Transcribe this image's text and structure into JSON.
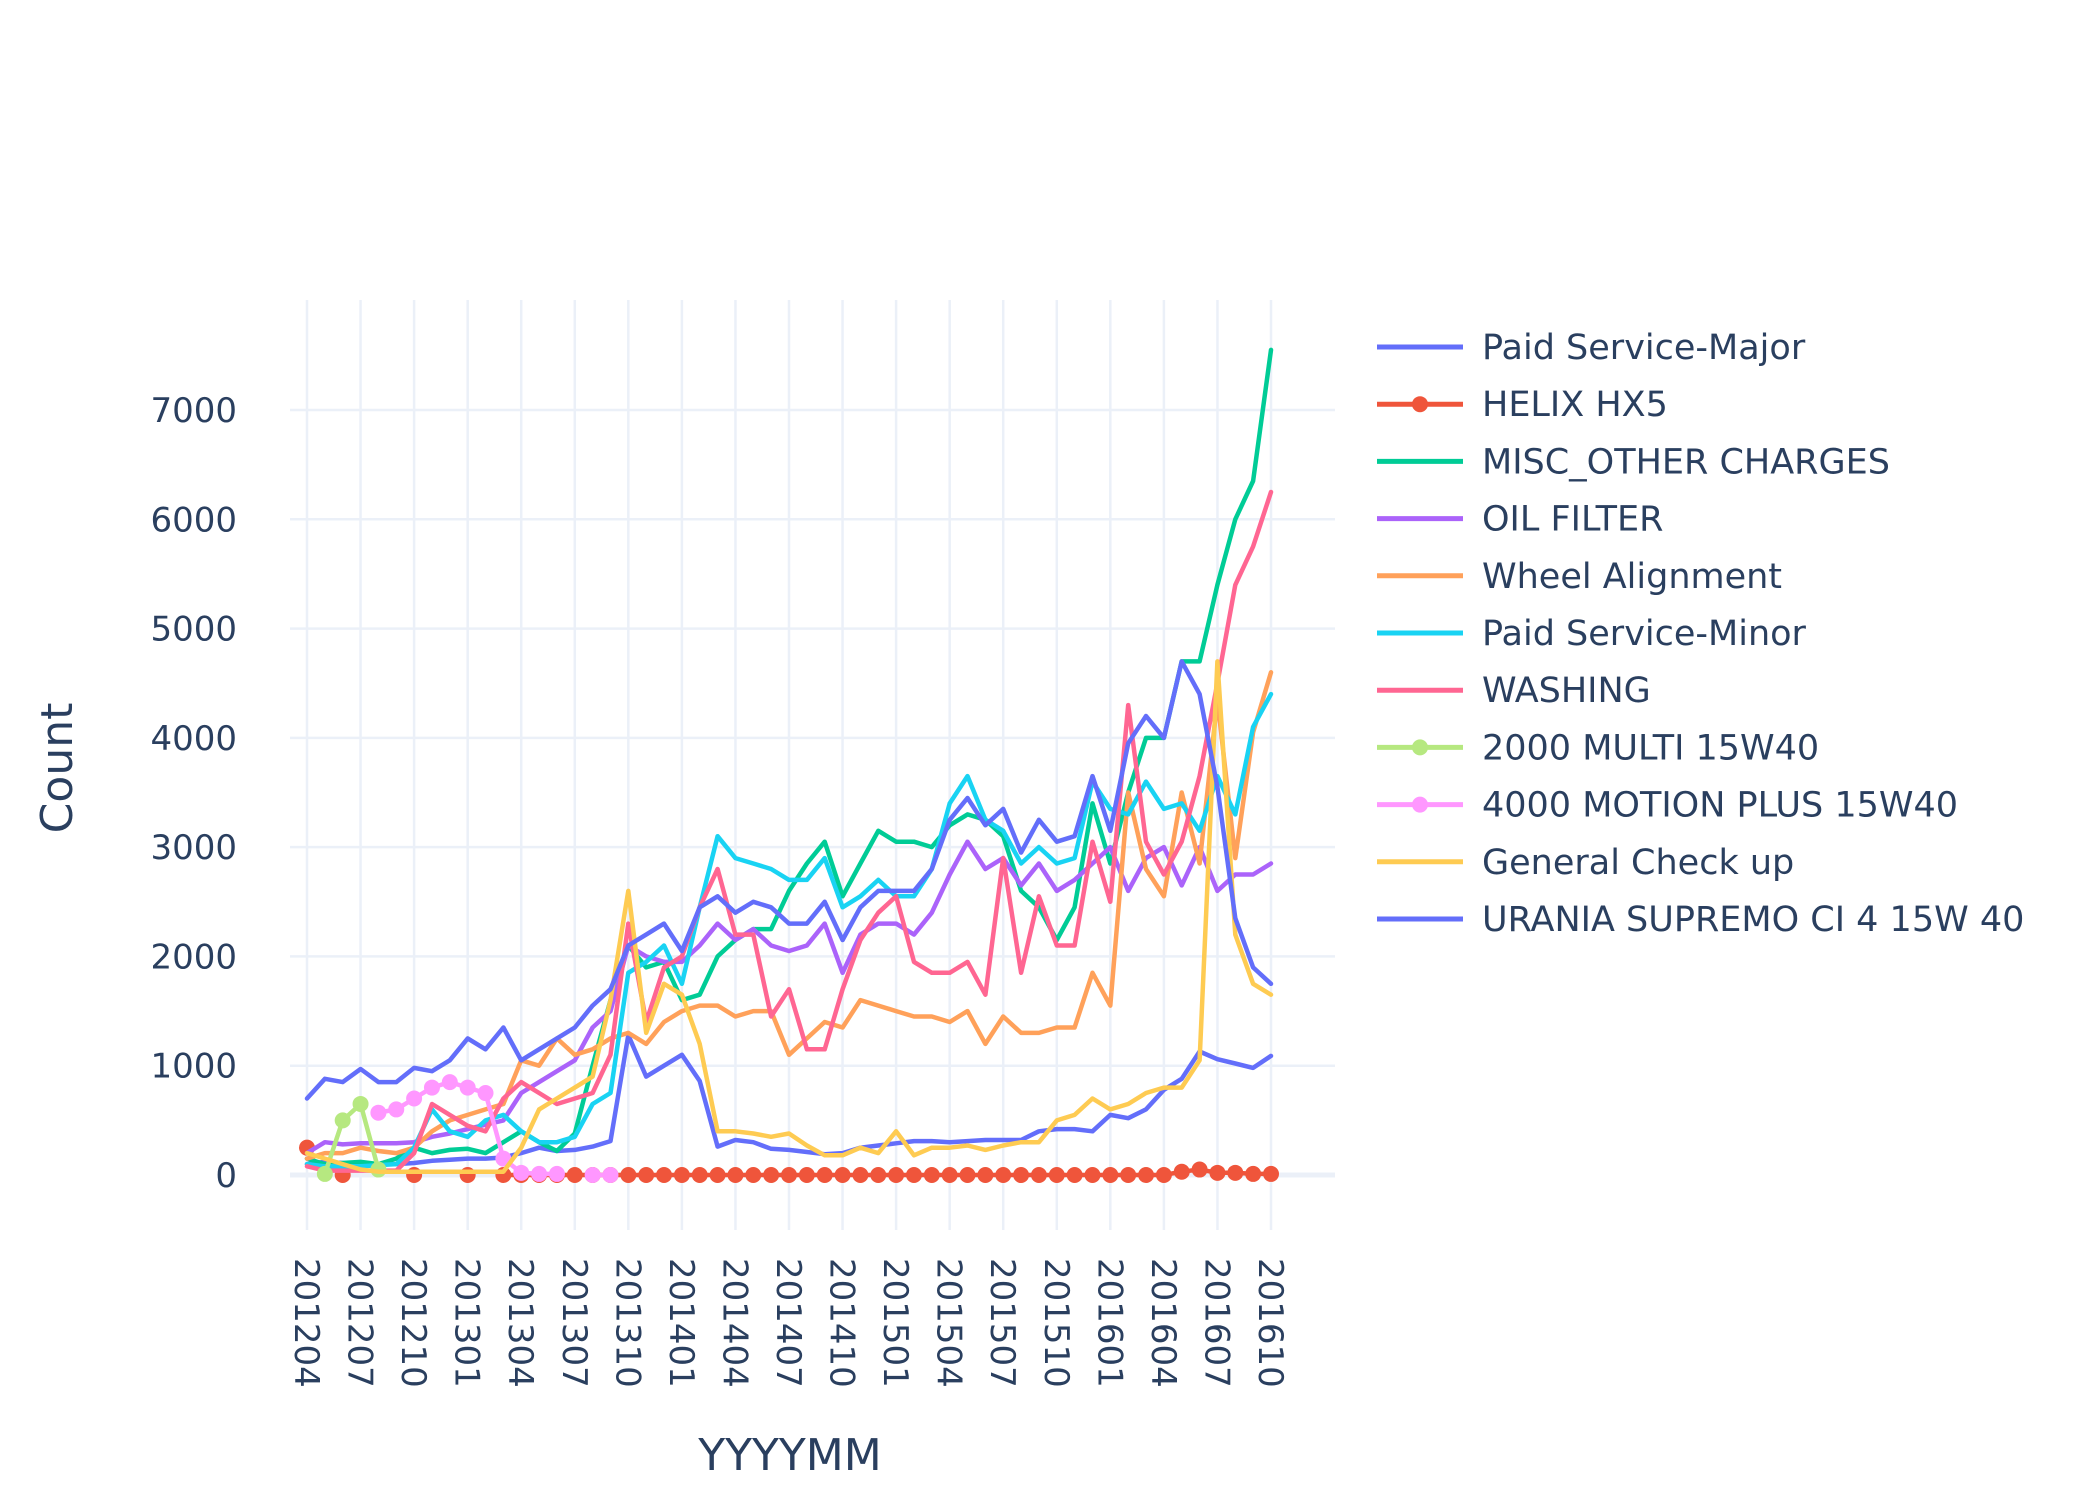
{
  "chart_data": {
    "type": "line",
    "title": "",
    "xlabel": "YYYYMM",
    "ylabel": "Count",
    "ylim": [
      -550,
      8150
    ],
    "yticks": [
      0,
      1000,
      2000,
      3000,
      4000,
      5000,
      6000,
      7000
    ],
    "grid": true,
    "legend_position": "right",
    "x": [
      "201204",
      "201205",
      "201206",
      "201207",
      "201208",
      "201209",
      "201210",
      "201211",
      "201212",
      "201301",
      "201302",
      "201303",
      "201304",
      "201305",
      "201306",
      "201307",
      "201308",
      "201309",
      "201310",
      "201311",
      "201312",
      "201401",
      "201402",
      "201403",
      "201404",
      "201405",
      "201406",
      "201407",
      "201408",
      "201409",
      "201410",
      "201411",
      "201412",
      "201501",
      "201502",
      "201503",
      "201504",
      "201505",
      "201506",
      "201507",
      "201508",
      "201509",
      "201510",
      "201511",
      "201512",
      "201601",
      "201602",
      "201603",
      "201604",
      "201605",
      "201606",
      "201607",
      "201608",
      "201609",
      "201610"
    ],
    "xticks": [
      "201204",
      "201207",
      "201210",
      "201301",
      "201304",
      "201307",
      "201310",
      "201401",
      "201404",
      "201407",
      "201410",
      "201501",
      "201504",
      "201507",
      "201510",
      "201601",
      "201604",
      "201607",
      "201610"
    ],
    "series": [
      {
        "name": "Paid Service-Major",
        "color": "#636efa",
        "mode": "lines",
        "values": [
          100,
          120,
          110,
          100,
          100,
          100,
          110,
          130,
          140,
          150,
          150,
          160,
          200,
          250,
          220,
          230,
          260,
          310,
          1280,
          900,
          1000,
          1100,
          860,
          260,
          320,
          300,
          240,
          230,
          210,
          190,
          200,
          250,
          270,
          290,
          310,
          310,
          300,
          310,
          320,
          320,
          320,
          400,
          420,
          420,
          400,
          550,
          520,
          600,
          780,
          880,
          1130,
          1060,
          1020,
          980,
          1090
        ]
      },
      {
        "name": "HELIX HX5",
        "color": "#ef553b",
        "mode": "lines+markers",
        "values": [
          250,
          null,
          0,
          null,
          null,
          null,
          0,
          null,
          null,
          0,
          null,
          0,
          0,
          0,
          0,
          0,
          0,
          0,
          0,
          0,
          0,
          0,
          0,
          0,
          0,
          0,
          0,
          0,
          0,
          0,
          0,
          0,
          0,
          0,
          0,
          0,
          0,
          0,
          0,
          0,
          0,
          0,
          0,
          0,
          0,
          0,
          0,
          0,
          0,
          30,
          50,
          20,
          20,
          10,
          10
        ]
      },
      {
        "name": "MISC_OTHER CHARGES",
        "color": "#00cc96",
        "mode": "lines",
        "values": [
          150,
          100,
          110,
          120,
          100,
          150,
          250,
          200,
          230,
          240,
          200,
          300,
          400,
          300,
          220,
          380,
          1000,
          1600,
          2100,
          1900,
          1950,
          1600,
          1650,
          2000,
          2150,
          2250,
          2250,
          2600,
          2850,
          3050,
          2550,
          2850,
          3150,
          3050,
          3050,
          3000,
          3200,
          3300,
          3250,
          3100,
          2600,
          2450,
          2150,
          2450,
          3400,
          2850,
          3500,
          4000,
          4000,
          4700,
          4700,
          5400,
          6000,
          6350,
          7550
        ]
      },
      {
        "name": "OIL FILTER",
        "color": "#ab63fa",
        "mode": "lines",
        "values": [
          200,
          300,
          280,
          290,
          290,
          290,
          300,
          350,
          380,
          420,
          460,
          500,
          750,
          850,
          950,
          1050,
          1350,
          1500,
          2100,
          2000,
          1950,
          1950,
          2100,
          2300,
          2150,
          2250,
          2100,
          2050,
          2100,
          2300,
          1850,
          2200,
          2300,
          2300,
          2200,
          2400,
          2750,
          3050,
          2800,
          2900,
          2650,
          2850,
          2600,
          2700,
          2850,
          3000,
          2600,
          2900,
          3000,
          2650,
          3000,
          2600,
          2750,
          2750,
          2850
        ]
      },
      {
        "name": "Wheel Alignment",
        "color": "#ffa15a",
        "mode": "lines",
        "values": [
          150,
          200,
          200,
          250,
          220,
          200,
          250,
          400,
          500,
          550,
          600,
          650,
          1050,
          1000,
          1250,
          1100,
          1150,
          1250,
          1300,
          1200,
          1400,
          1500,
          1550,
          1550,
          1450,
          1500,
          1500,
          1100,
          1250,
          1400,
          1350,
          1600,
          1550,
          1500,
          1450,
          1450,
          1400,
          1500,
          1200,
          1450,
          1300,
          1300,
          1350,
          1350,
          1850,
          1550,
          3500,
          2800,
          2550,
          3500,
          2850,
          4350,
          2900,
          4050,
          4600
        ]
      },
      {
        "name": "Paid Service-Minor",
        "color": "#19d3f3",
        "mode": "lines",
        "values": [
          100,
          80,
          80,
          80,
          90,
          100,
          250,
          600,
          400,
          350,
          500,
          550,
          400,
          300,
          300,
          350,
          650,
          750,
          1850,
          1950,
          2100,
          1750,
          2450,
          3100,
          2900,
          2850,
          2800,
          2700,
          2700,
          2900,
          2450,
          2550,
          2700,
          2550,
          2550,
          2800,
          3400,
          3650,
          3250,
          3150,
          2850,
          3000,
          2850,
          2900,
          3600,
          3350,
          3300,
          3600,
          3350,
          3400,
          3150,
          3650,
          3300,
          4100,
          4400
        ]
      },
      {
        "name": "WASHING",
        "color": "#ff6692",
        "mode": "lines",
        "values": [
          80,
          40,
          40,
          40,
          40,
          40,
          200,
          650,
          550,
          450,
          400,
          700,
          850,
          750,
          650,
          700,
          750,
          1100,
          2300,
          1400,
          1900,
          2000,
          2450,
          2800,
          2200,
          2200,
          1450,
          1700,
          1150,
          1150,
          1700,
          2150,
          2400,
          2550,
          1950,
          1850,
          1850,
          1950,
          1650,
          2900,
          1850,
          2550,
          2100,
          2100,
          3050,
          2500,
          4300,
          3050,
          2750,
          3050,
          3650,
          4500,
          5400,
          5750,
          6250
        ]
      },
      {
        "name": "2000 MULTI 15W40",
        "color": "#b6e880",
        "mode": "lines+markers",
        "values": [
          null,
          10,
          500,
          650,
          50,
          null,
          null,
          null,
          null,
          null,
          null,
          null,
          null,
          null,
          null,
          null,
          null,
          null,
          null,
          null,
          null,
          null,
          null,
          null,
          null,
          null,
          null,
          null,
          null,
          null,
          null,
          null,
          null,
          null,
          null,
          null,
          null,
          null,
          null,
          null,
          null,
          null,
          null,
          null,
          null,
          null,
          null,
          null,
          null,
          null,
          null,
          null,
          null,
          null,
          null
        ]
      },
      {
        "name": "4000 MOTION PLUS 15W40",
        "color": "#ff97ff",
        "mode": "lines+markers",
        "values": [
          null,
          null,
          null,
          null,
          570,
          600,
          700,
          800,
          850,
          800,
          750,
          150,
          20,
          10,
          10,
          null,
          0,
          0,
          null,
          null,
          null,
          null,
          null,
          null,
          null,
          null,
          null,
          null,
          null,
          null,
          null,
          null,
          null,
          null,
          null,
          null,
          null,
          null,
          null,
          null,
          null,
          null,
          null,
          null,
          null,
          null,
          null,
          null,
          null,
          null,
          null,
          null,
          null,
          null,
          null
        ]
      },
      {
        "name": "General Check up",
        "color": "#fecb52",
        "mode": "lines",
        "values": [
          200,
          150,
          100,
          50,
          30,
          30,
          30,
          30,
          30,
          30,
          30,
          30,
          250,
          600,
          700,
          800,
          900,
          1600,
          2600,
          1300,
          1750,
          1650,
          1200,
          400,
          400,
          380,
          350,
          380,
          270,
          180,
          180,
          250,
          200,
          400,
          180,
          250,
          250,
          270,
          230,
          270,
          300,
          300,
          500,
          550,
          700,
          600,
          650,
          750,
          800,
          800,
          1050,
          4700,
          2200,
          1750,
          1650
        ]
      },
      {
        "name": "URANIA SUPREMO CI 4 15W 40",
        "color": "#636efa",
        "mode": "lines",
        "values": [
          700,
          880,
          850,
          970,
          850,
          850,
          980,
          950,
          1050,
          1250,
          1150,
          1350,
          1050,
          1150,
          1250,
          1350,
          1550,
          1700,
          2100,
          2200,
          2300,
          2050,
          2450,
          2550,
          2400,
          2500,
          2450,
          2300,
          2300,
          2500,
          2150,
          2450,
          2600,
          2600,
          2600,
          2800,
          3250,
          3450,
          3200,
          3350,
          2950,
          3250,
          3050,
          3100,
          3650,
          3150,
          3950,
          4200,
          4000,
          4700,
          4400,
          3550,
          2350,
          1900,
          1750
        ]
      }
    ]
  }
}
